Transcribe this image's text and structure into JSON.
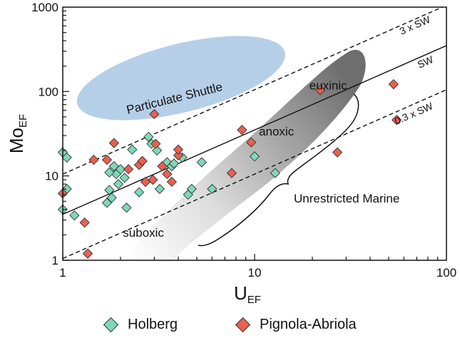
{
  "chart_data": {
    "type": "scatter",
    "title": "",
    "xlabel": {
      "main": "U",
      "sub": "EF"
    },
    "ylabel": {
      "main": "Mo",
      "sub": "EF"
    },
    "xscale": "log",
    "yscale": "log",
    "xlim": [
      1,
      100
    ],
    "ylim": [
      1,
      1000
    ],
    "xticks": [
      1,
      10,
      100
    ],
    "xtick_labels": [
      "1",
      "10",
      "100"
    ],
    "yticks": [
      1,
      10,
      100,
      1000
    ],
    "ytick_labels": [
      "1",
      "10",
      "100",
      "1000"
    ],
    "grid": false,
    "legend_position": "bottom",
    "reference_lines": [
      {
        "label": "3 x SW",
        "style": "dashed",
        "x": [
          1,
          100
        ],
        "y": [
          10.5,
          1050
        ]
      },
      {
        "label": "SW",
        "style": "solid",
        "x": [
          1,
          100
        ],
        "y": [
          3.5,
          350
        ]
      },
      {
        "label": "0.3 x SW",
        "style": "dashed",
        "x": [
          1,
          100
        ],
        "y": [
          1.05,
          105
        ]
      }
    ],
    "regions": [
      {
        "label": "Particulate Shuttle",
        "color": "#b6cfe8",
        "shape": "ellipse",
        "center": [
          3.2,
          150
        ],
        "angle_deg": 4
      },
      {
        "label": "euxinic",
        "label_at": [
          22.5,
          106
        ]
      },
      {
        "label": "anoxic",
        "label_at": [
          12.5,
          30
        ]
      },
      {
        "label": "suboxic",
        "label_at": [
          2.8,
          1.9
        ]
      },
      {
        "label": "Unrestricted Marine",
        "label_at": [
          36,
          5
        ],
        "shape": "brace"
      }
    ],
    "series": [
      {
        "name": "Holberg",
        "color": "#7fd8b6",
        "marker": "diamond",
        "x": [
          1.0,
          1.05,
          1.05,
          1.0,
          1.15,
          1.7,
          1.75,
          1.8,
          1.9,
          2.0,
          1.85,
          1.75,
          2.1,
          2.3,
          2.5,
          2.8,
          2.9,
          3.1,
          3.2,
          3.5,
          3.7,
          3.8,
          4.2,
          4.5,
          4.7,
          5.3,
          6.0,
          10.0,
          12.8,
          2.6,
          1.95,
          2.15,
          2.7
        ],
        "y": [
          19.0,
          16.5,
          7.0,
          4.0,
          3.4,
          4.8,
          6.8,
          5.5,
          10.5,
          12.0,
          13.0,
          11.0,
          9.5,
          20.5,
          6.4,
          29.0,
          24.0,
          20.0,
          7.0,
          14.5,
          13.0,
          14.0,
          16.5,
          6.0,
          7.0,
          14.5,
          7.0,
          17.0,
          10.8,
          15.0,
          8.0,
          4.2,
          8.5
        ]
      },
      {
        "name": "Pignola-Abriola",
        "color": "#e8614f",
        "marker": "diamond",
        "x": [
          1.0,
          1.3,
          1.35,
          1.45,
          1.7,
          1.85,
          2.2,
          2.5,
          2.7,
          2.95,
          3.0,
          3.05,
          3.3,
          3.5,
          3.7,
          4.0,
          4.0,
          7.6,
          8.6,
          9.6,
          22.0,
          27.0,
          53.0,
          55.0,
          2.6
        ],
        "y": [
          6.2,
          2.8,
          1.2,
          15.5,
          15.5,
          24.5,
          12.0,
          13.5,
          8.5,
          9.0,
          54.0,
          24.0,
          13.0,
          10.5,
          8.5,
          17.5,
          20.5,
          10.8,
          35.0,
          25.0,
          104.0,
          19.0,
          122.0,
          46.0,
          15.0
        ]
      }
    ]
  },
  "legend": {
    "items": [
      {
        "label": "Holberg",
        "color": "#7fd8b6"
      },
      {
        "label": "Pignola-Abriola",
        "color": "#e8614f"
      }
    ]
  }
}
